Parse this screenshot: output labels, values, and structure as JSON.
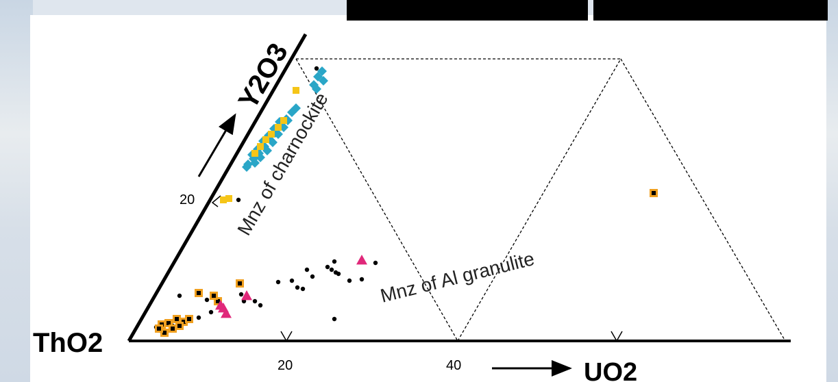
{
  "diagram": {
    "type": "ternary",
    "axes": {
      "corner_bottom_left": "ThO2",
      "left_side": "Y2O3",
      "bottom": "UO2"
    },
    "ticks": {
      "bottom": [
        "20",
        "40"
      ],
      "left": [
        "20"
      ]
    },
    "fields": {
      "charnockite": "Mnz of charnockite",
      "al_granulite": "Mnz of Al granulite"
    },
    "colors": {
      "cyan": "#2aa6c7",
      "yellow": "#f5c518",
      "magenta": "#e0287a",
      "orange": "#f0a020",
      "black": "#000000"
    }
  }
}
